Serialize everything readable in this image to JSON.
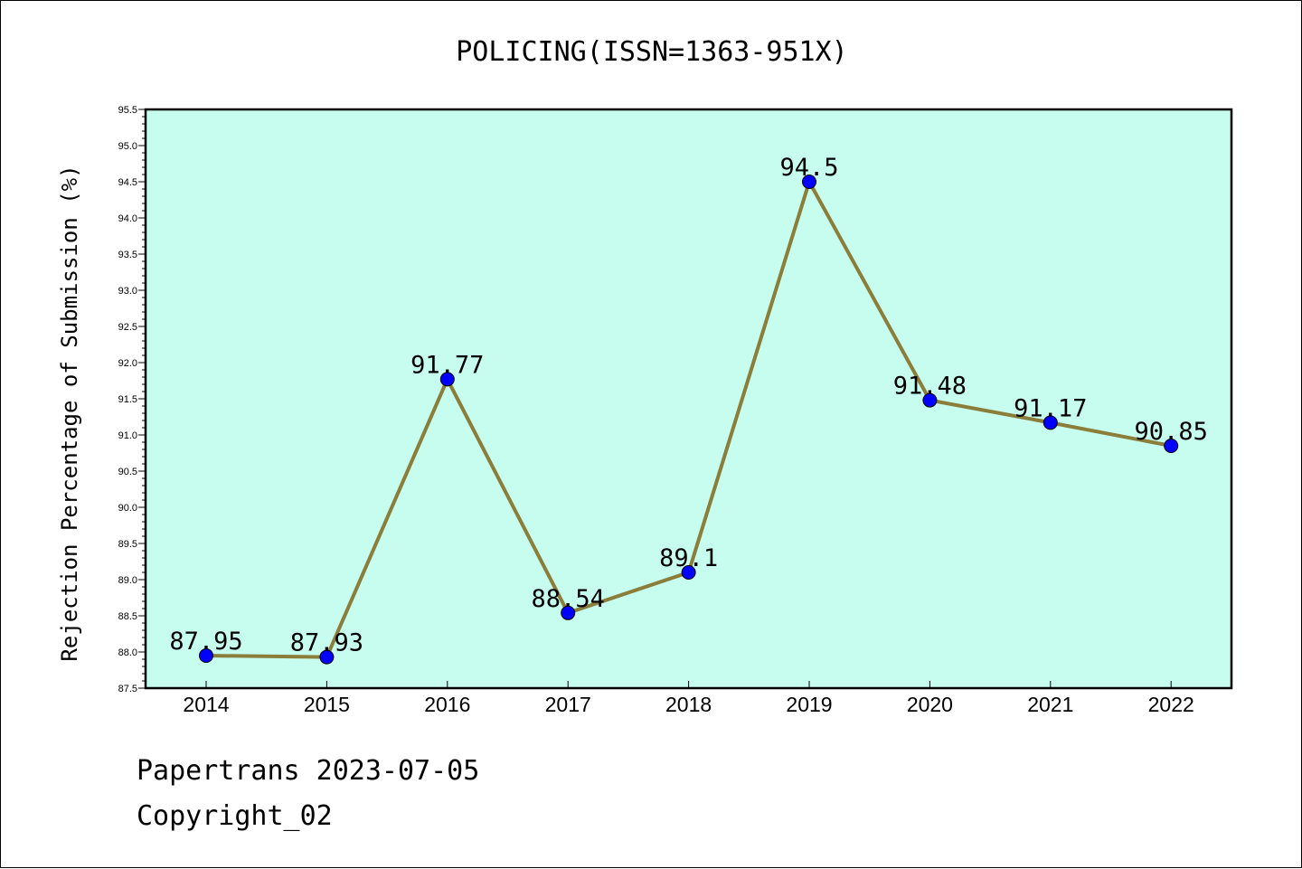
{
  "chart_data": {
    "type": "line",
    "title": "POLICING(ISSN=1363-951X)",
    "xlabel": "",
    "ylabel": "Rejection Percentage of Submission (%)",
    "categories": [
      "2014",
      "2015",
      "2016",
      "2017",
      "2018",
      "2019",
      "2020",
      "2021",
      "2022"
    ],
    "series": [
      {
        "values": [
          87.95,
          87.93,
          91.77,
          88.54,
          89.1,
          94.5,
          91.48,
          91.17,
          90.85
        ],
        "labels": [
          "87.95",
          "87.93",
          "91.77",
          "88.54",
          "89.1",
          "94.5",
          "91.48",
          "91.17",
          "90.85"
        ]
      }
    ],
    "ylim": [
      87.5,
      95.5
    ],
    "yticks": [
      "87.5",
      "88.0",
      "88.5",
      "89.0",
      "89.5",
      "90.0",
      "90.5",
      "91.0",
      "91.5",
      "92.0",
      "92.5",
      "93.0",
      "93.5",
      "94.0",
      "94.5",
      "95.0",
      "95.5"
    ],
    "grid": false,
    "legend": "none",
    "colors": {
      "plot_background": "#c7fdee",
      "line": "#8b7d3a",
      "marker": "#0000ff"
    }
  },
  "footer": {
    "line1": "Papertrans 2023-07-05",
    "line2": "Copyright_02"
  }
}
